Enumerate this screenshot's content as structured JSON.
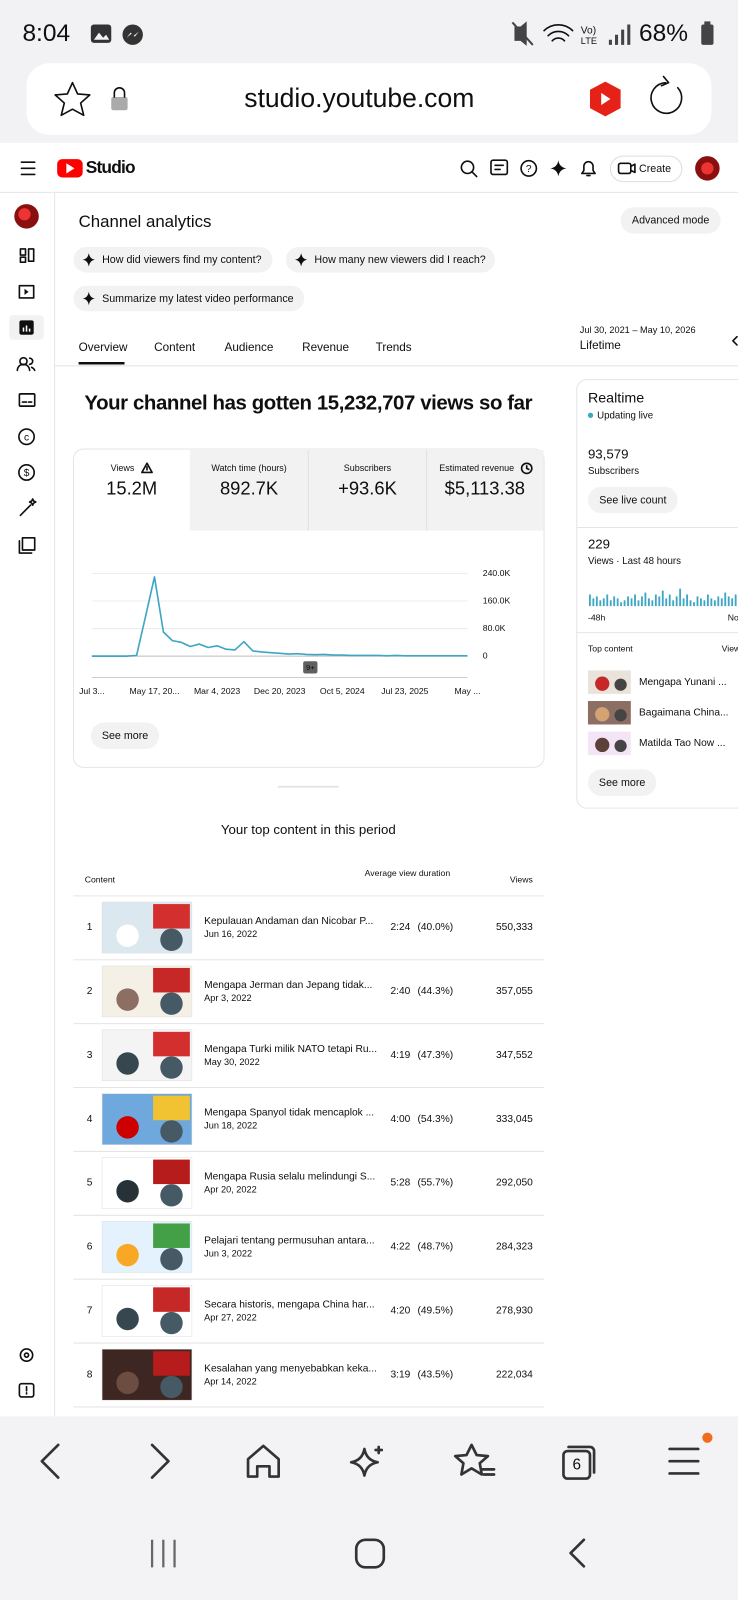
{
  "status_bar": {
    "time": "8:04",
    "battery": "68%"
  },
  "address_bar": {
    "url": "studio.youtube.com"
  },
  "header": {
    "logo": "Studio",
    "create": "Create"
  },
  "analytics": {
    "title": "Channel analytics",
    "advanced_mode": "Advanced mode",
    "prompts": [
      "How did viewers find my content?",
      "How many new viewers did I reach?",
      "Summarize my latest video performance"
    ],
    "tabs": [
      "Overview",
      "Content",
      "Audience",
      "Revenue",
      "Trends"
    ],
    "date_range": "Jul 30, 2021 – May 10, 2026",
    "period": "Lifetime"
  },
  "summary": {
    "headline": "Your channel has gotten 15,232,707 views so far",
    "metrics": [
      {
        "label": "Views",
        "value": "15.2M"
      },
      {
        "label": "Watch time (hours)",
        "value": "892.7K"
      },
      {
        "label": "Subscribers",
        "value": "+93.6K"
      },
      {
        "label": "Estimated revenue",
        "value": "$5,113.38"
      }
    ],
    "see_more": "See more"
  },
  "chart_data": {
    "type": "line",
    "color": "#3ea6c4",
    "categories": [
      "Jul 3...",
      null,
      null,
      null,
      null,
      null,
      null,
      "May 17, 20...",
      null,
      null,
      null,
      null,
      null,
      null,
      "Mar 4, 2023",
      null,
      null,
      null,
      null,
      null,
      null,
      "Dec 20, 2023",
      null,
      null,
      null,
      null,
      null,
      null,
      "Oct 5, 2024",
      null,
      null,
      null,
      null,
      null,
      null,
      "Jul 23, 2025",
      null,
      null,
      null,
      null,
      null,
      null,
      "May ..."
    ],
    "values": [
      0,
      0,
      0,
      0,
      0,
      2000,
      115000,
      230000,
      70000,
      45000,
      40000,
      28000,
      35000,
      25000,
      30000,
      20000,
      18000,
      42000,
      15000,
      12000,
      10000,
      8000,
      6000,
      7000,
      5000,
      4000,
      5000,
      3000,
      3000,
      2000,
      2000,
      2000,
      2000,
      1000,
      2000,
      1000,
      1000,
      1000,
      1000,
      1000,
      1000,
      1000,
      1000
    ],
    "ylim": [
      0,
      240000
    ],
    "yticks": [
      0,
      {
        "value": 80000,
        "label": "80.0K"
      },
      {
        "value": 160000,
        "label": "160.0K"
      },
      {
        "value": 240000,
        "label": "240.0K"
      }
    ],
    "grid": true,
    "badge": "9+"
  },
  "realtime": {
    "title": "Realtime",
    "status": "Updating live",
    "subscribers": "93,579",
    "subscribers_label": "Subscribers",
    "see_live_count": "See live count",
    "views": "229",
    "views_label": "Views · Last 48 hours",
    "bars": [
      6,
      4,
      5,
      3,
      4,
      6,
      3,
      5,
      4,
      2,
      3,
      5,
      4,
      6,
      3,
      5,
      7,
      4,
      3,
      6,
      5,
      8,
      4,
      6,
      3,
      5,
      9,
      4,
      6,
      3,
      2,
      5,
      4,
      3,
      6,
      4,
      3,
      5,
      4,
      7,
      5,
      4,
      6,
      12,
      8,
      5,
      9,
      6
    ],
    "axis_start": "-48h",
    "axis_end": "Now",
    "top_content": "Top content",
    "view_more": "View more",
    "items": [
      "Mengapa Yunani ...",
      "Bagaimana China...",
      "Matilda Tao Now ..."
    ],
    "see_more": "See more"
  },
  "top_content": {
    "title": "Your top content in this period",
    "columns": [
      "Content",
      "Average view duration",
      "Views"
    ],
    "rows": [
      {
        "rank": "1",
        "title": "Kepulauan Andaman dan Nicobar P...",
        "date": "Jun 16, 2022",
        "duration": "2:24",
        "percent": "(40.0%)",
        "views": "550,333"
      },
      {
        "rank": "2",
        "title": "Mengapa Jerman dan Jepang tidak...",
        "date": "Apr 3, 2022",
        "duration": "2:40",
        "percent": "(44.3%)",
        "views": "357,055"
      },
      {
        "rank": "3",
        "title": "Mengapa Turki milik NATO tetapi Ru...",
        "date": "May 30, 2022",
        "duration": "4:19",
        "percent": "(47.3%)",
        "views": "347,552"
      },
      {
        "rank": "4",
        "title": "Mengapa Spanyol tidak mencaplok ...",
        "date": "Jun 18, 2022",
        "duration": "4:00",
        "percent": "(54.3%)",
        "views": "333,045"
      },
      {
        "rank": "5",
        "title": "Mengapa Rusia selalu melindungi S...",
        "date": "Apr 20, 2022",
        "duration": "5:28",
        "percent": "(55.7%)",
        "views": "292,050"
      },
      {
        "rank": "6",
        "title": "Pelajari tentang permusuhan antara...",
        "date": "Jun 3, 2022",
        "duration": "4:22",
        "percent": "(48.7%)",
        "views": "284,323"
      },
      {
        "rank": "7",
        "title": "Secara historis, mengapa China har...",
        "date": "Apr 27, 2022",
        "duration": "4:20",
        "percent": "(49.5%)",
        "views": "278,930"
      },
      {
        "rank": "8",
        "title": "Kesalahan yang menyebabkan keka...",
        "date": "Apr 14, 2022",
        "duration": "3:19",
        "percent": "(43.5%)",
        "views": "222,034"
      }
    ]
  },
  "browser_nav": {
    "tabs_count": "6"
  }
}
